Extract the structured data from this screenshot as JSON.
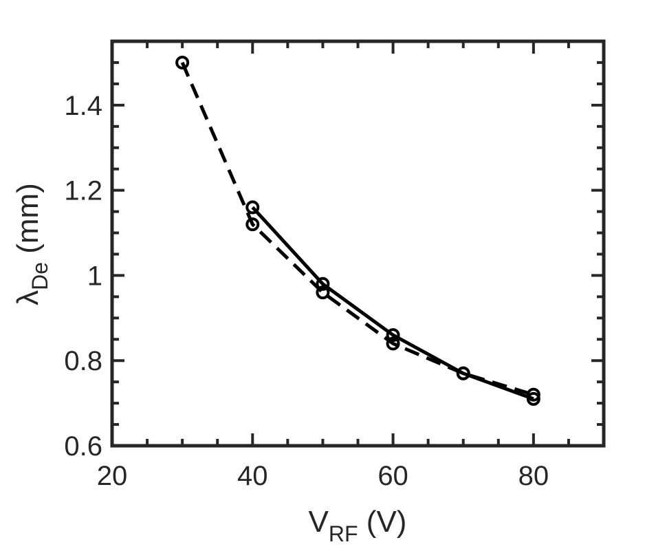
{
  "chart_data": {
    "type": "line",
    "xlabel": {
      "main": "V",
      "sub": "RF",
      "unit": " (V)"
    },
    "ylabel": {
      "main": "λ",
      "sub": "De",
      "unit": " (mm)"
    },
    "xlim": [
      20,
      90
    ],
    "ylim": [
      0.6,
      1.55
    ],
    "xticks": [
      20,
      40,
      60,
      80
    ],
    "yticks": [
      0.6,
      0.8,
      1,
      1.2,
      1.4
    ],
    "ytick_labels": [
      "0.6",
      "0.8",
      "1",
      "1.2",
      "1.4"
    ],
    "x_minor_step": 5,
    "y_minor_step": 0.05,
    "grid": false,
    "series": [
      {
        "style": "dashed",
        "color": "#000000",
        "x": [
          30,
          40,
          50,
          60,
          70,
          80
        ],
        "y": [
          1.5,
          1.12,
          0.96,
          0.84,
          0.77,
          0.72
        ]
      },
      {
        "style": "solid",
        "color": "#000000",
        "x": [
          40,
          50,
          60,
          70,
          80
        ],
        "y": [
          1.16,
          0.98,
          0.86,
          0.77,
          0.71
        ]
      }
    ]
  }
}
